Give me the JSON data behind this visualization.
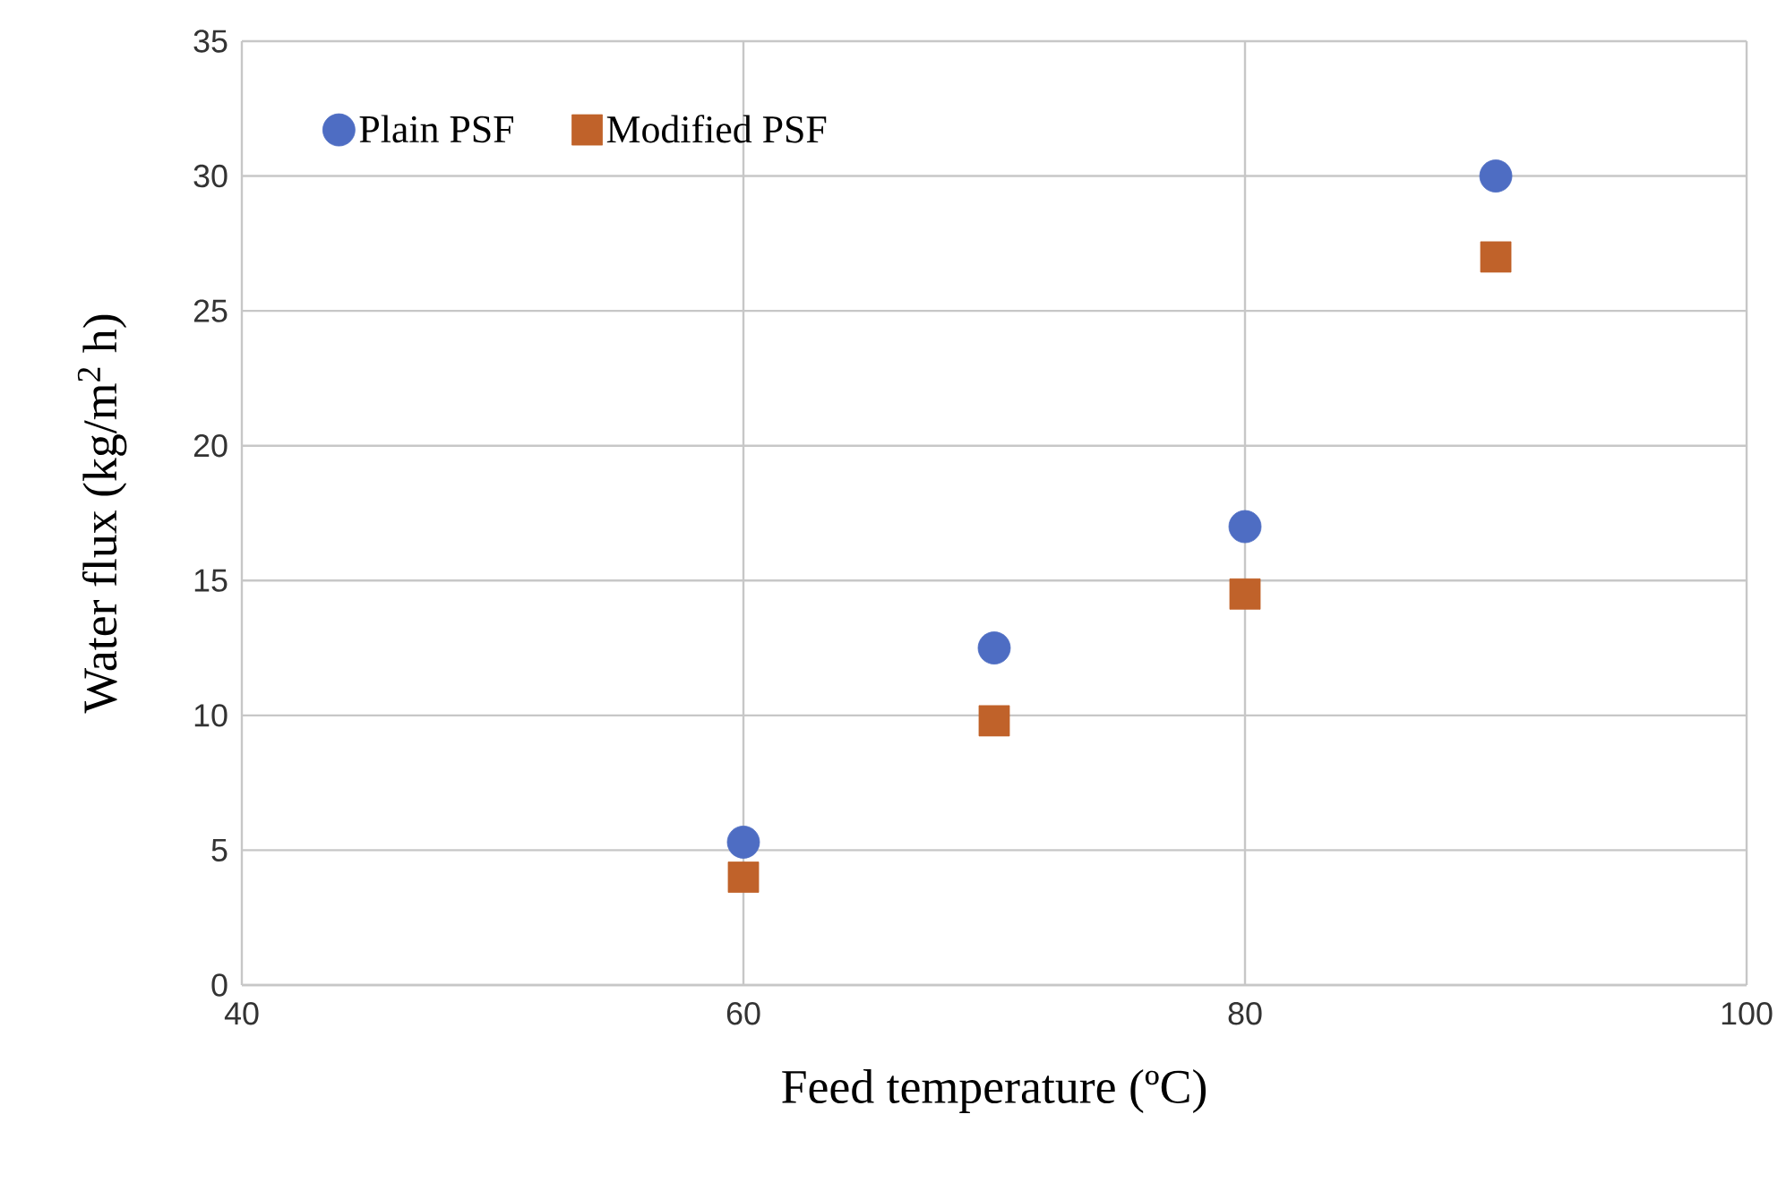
{
  "chart_data": {
    "type": "scatter",
    "xlabel": "Feed temperature (ºC)",
    "ylabel": "Water flux (kg/m$^{2}$ h)",
    "series": [
      {
        "name": "Plain PSF",
        "color": "#4e6dc3",
        "marker": "circle",
        "x": [
          60,
          70,
          80,
          90
        ],
        "values": [
          5.3,
          12.5,
          17,
          30
        ]
      },
      {
        "name": "Modified PSF",
        "color": "#c0622a",
        "marker": "square",
        "x": [
          60,
          70,
          80,
          90
        ],
        "values": [
          4,
          9.8,
          14.5,
          27
        ]
      }
    ],
    "xlim": [
      40,
      100
    ],
    "xticks": [
      40,
      60,
      80,
      100
    ],
    "ylim": [
      0,
      35
    ],
    "yticks": [
      0,
      5,
      10,
      15,
      20,
      25,
      30,
      35
    ],
    "grid": true,
    "legend": "top left"
  }
}
